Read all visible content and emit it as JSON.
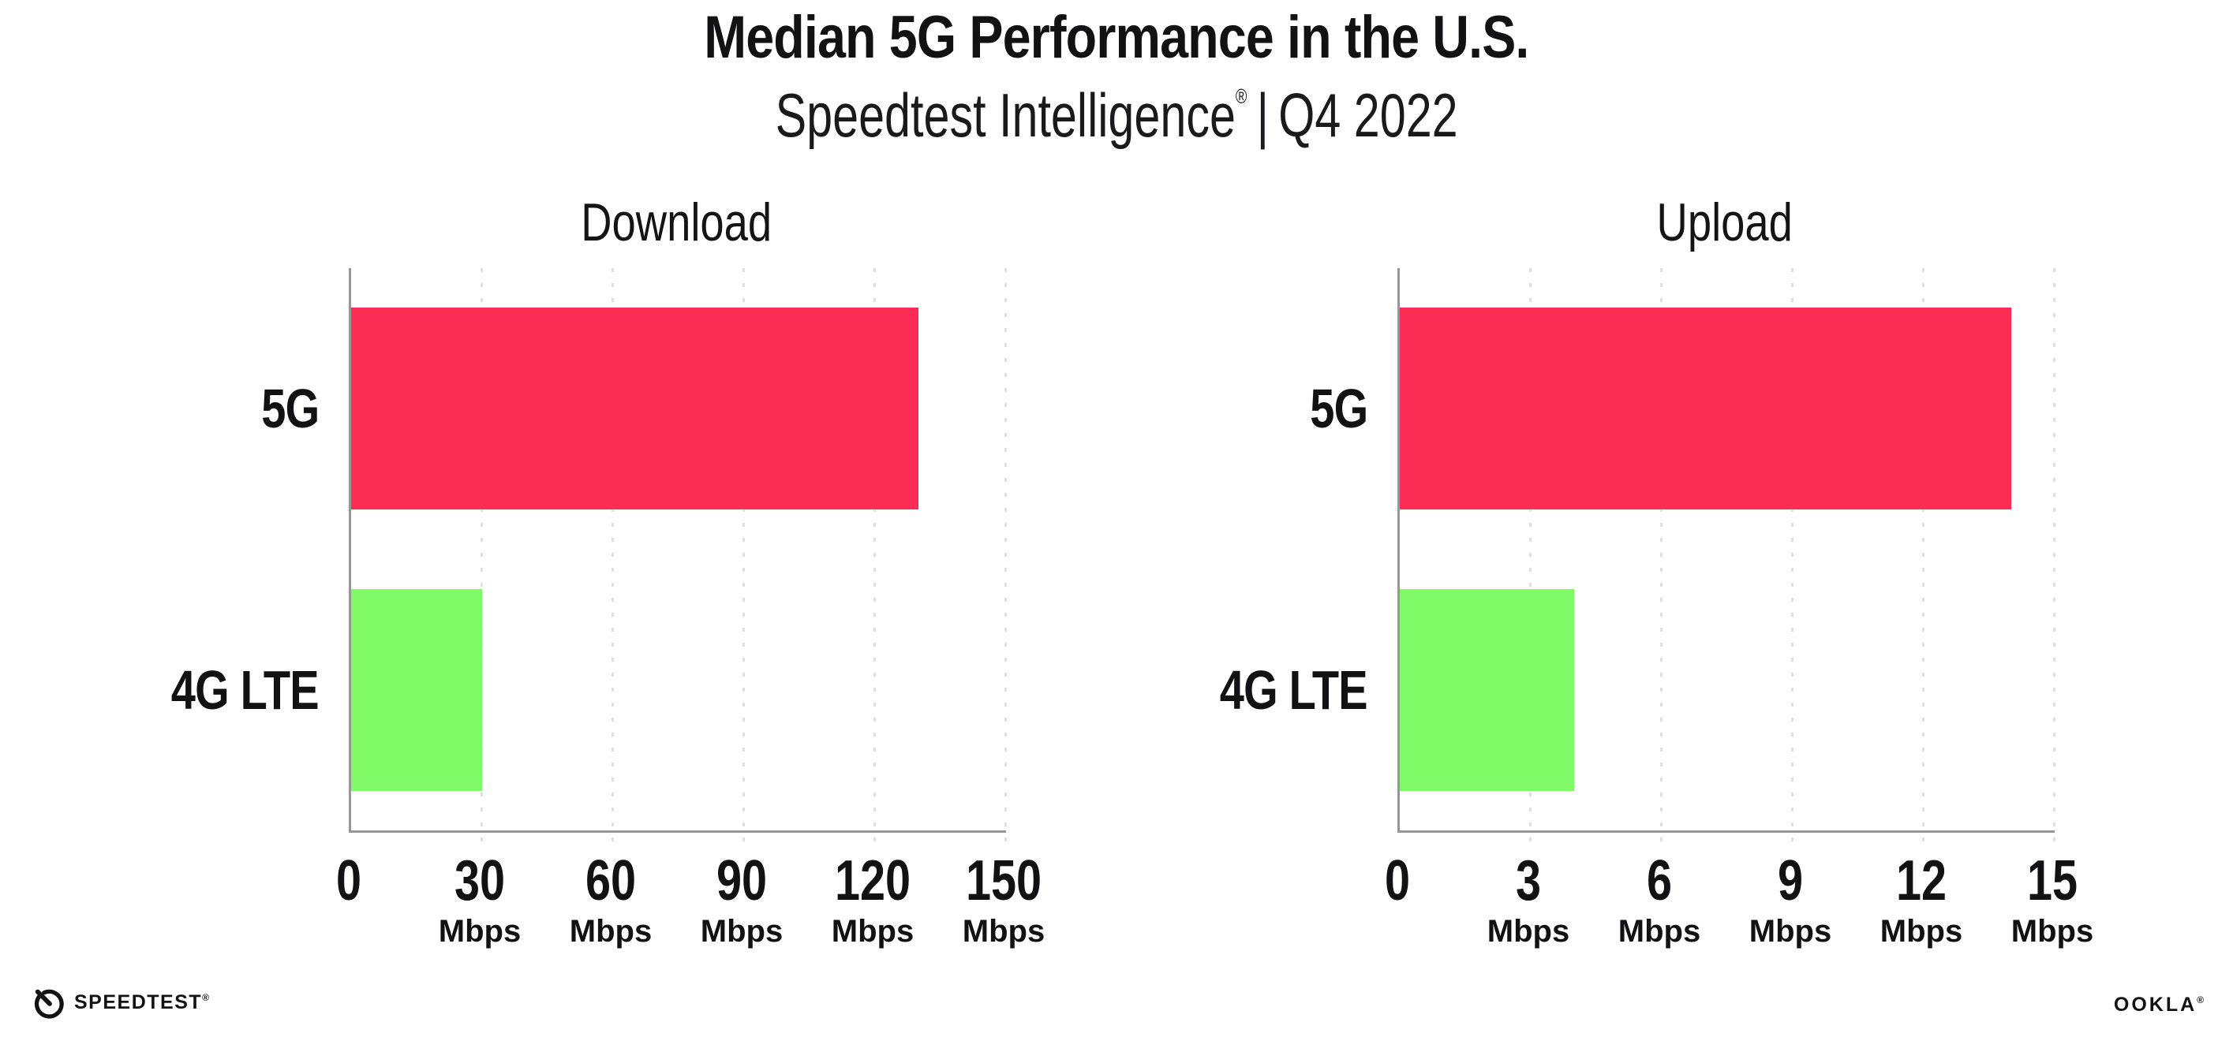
{
  "header": {
    "title": "Median 5G Performance in the U.S.",
    "subtitle": {
      "brand": "Speedtest Intelligence",
      "registered": "®",
      "separator": "|",
      "period": "Q4 2022"
    }
  },
  "chart_data": [
    {
      "type": "bar",
      "orientation": "horizontal",
      "title": "Download",
      "categories": [
        "5G",
        "4G LTE"
      ],
      "values": [
        130,
        30
      ],
      "value_unit": "Mbps",
      "series_colors": [
        "#FC2D54",
        "#80FA67"
      ],
      "xlim": [
        0,
        150
      ],
      "xticks": [
        0,
        30,
        60,
        90,
        120,
        150
      ],
      "xtick_unit": "Mbps",
      "grid": "vertical-dotted",
      "legend": "none"
    },
    {
      "type": "bar",
      "orientation": "horizontal",
      "title": "Upload",
      "categories": [
        "5G",
        "4G LTE"
      ],
      "values": [
        14,
        4
      ],
      "value_unit": "Mbps",
      "series_colors": [
        "#FC2D54",
        "#80FA67"
      ],
      "xlim": [
        0,
        15
      ],
      "xticks": [
        0,
        3,
        6,
        9,
        12,
        15
      ],
      "xtick_unit": "Mbps",
      "grid": "vertical-dotted",
      "legend": "none"
    }
  ],
  "colors": {
    "bar_5g": "#FC2D54",
    "bar_4g_lte": "#80FA67",
    "axis": "#97979b",
    "gridline": "#dee0e7",
    "text": "#121215"
  },
  "footer": {
    "speedtest_wordmark": "SPEEDTEST",
    "speedtest_trademark": "®",
    "speedometer_icon": "gauge-icon",
    "ookla_wordmark": "OOKLA",
    "ookla_trademark": "®"
  }
}
